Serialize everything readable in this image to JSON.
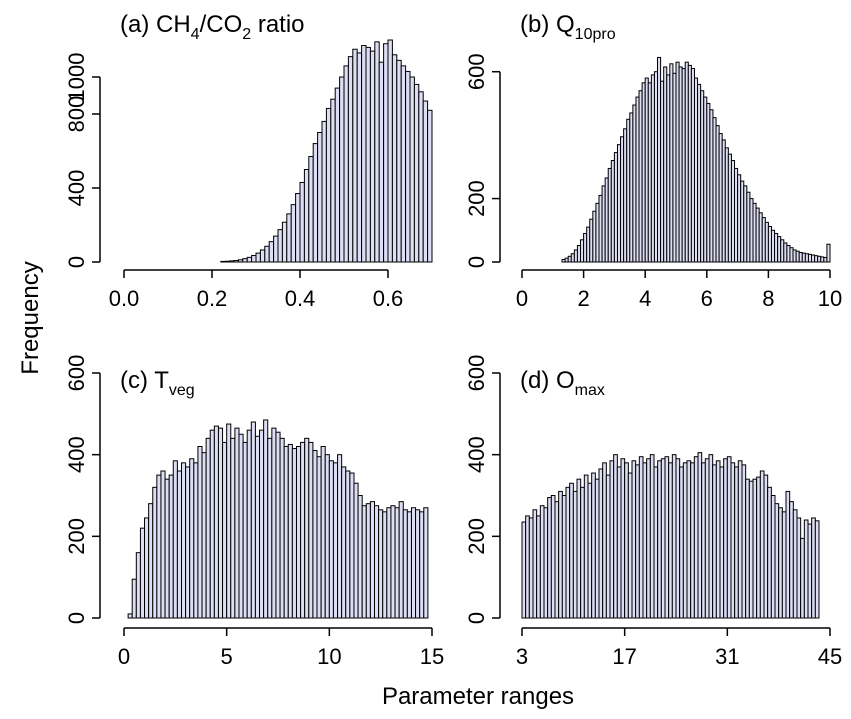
{
  "figure": {
    "ylabel": "Frequency",
    "xlabel": "Parameter ranges",
    "bar_color": "#ddddf3"
  },
  "chart_data": [
    {
      "type": "bar",
      "title": "(a) CH4/CO2 ratio",
      "title_parts": {
        "prefix": "(a) CH",
        "sub1": "4",
        "mid": "/CO",
        "sub2": "2",
        "suffix": " ratio"
      },
      "xlim": [
        0.0,
        0.7
      ],
      "ylim": [
        0,
        1200
      ],
      "xticks": [
        "0.0",
        "0.2",
        "0.4",
        "0.6"
      ],
      "xtick_values": [
        0.0,
        0.2,
        0.4,
        0.6
      ],
      "yticks": [
        "0",
        "400",
        "800",
        "1000"
      ],
      "ytick_values": [
        0,
        400,
        800,
        1000
      ],
      "bin_start": 0.22,
      "bin_width": 0.01,
      "values": [
        3,
        4,
        6,
        8,
        12,
        18,
        25,
        35,
        48,
        65,
        85,
        110,
        140,
        175,
        215,
        260,
        310,
        370,
        430,
        500,
        570,
        640,
        700,
        760,
        830,
        880,
        940,
        1000,
        1060,
        1110,
        1150,
        1130,
        1170,
        1160,
        1140,
        1190,
        1080,
        1180,
        1200,
        1120,
        1090,
        1060,
        1030,
        1000,
        960,
        920,
        870,
        820
      ]
    },
    {
      "type": "bar",
      "title": "(b) Q10pro",
      "title_parts": {
        "prefix": "(b) Q",
        "sub1": "10pro"
      },
      "xlim": [
        0,
        10
      ],
      "ylim": [
        0,
        700
      ],
      "xticks": [
        "0",
        "2",
        "4",
        "6",
        "8",
        "10"
      ],
      "xtick_values": [
        0,
        2,
        4,
        6,
        8,
        10
      ],
      "yticks": [
        "0",
        "200",
        "600"
      ],
      "ytick_values": [
        0,
        200,
        600
      ],
      "bin_start": 1.3,
      "bin_width": 0.1,
      "values": [
        8,
        12,
        18,
        26,
        38,
        52,
        70,
        90,
        110,
        135,
        160,
        185,
        210,
        240,
        265,
        295,
        320,
        345,
        370,
        395,
        420,
        450,
        470,
        495,
        520,
        540,
        565,
        580,
        565,
        590,
        600,
        645,
        570,
        615,
        590,
        625,
        595,
        630,
        615,
        610,
        630,
        620,
        610,
        580,
        560,
        540,
        520,
        500,
        480,
        455,
        430,
        405,
        385,
        360,
        340,
        320,
        295,
        275,
        255,
        240,
        220,
        200,
        185,
        170,
        155,
        140,
        125,
        112,
        100,
        90,
        80,
        70,
        60,
        52,
        45,
        38,
        34,
        30,
        28,
        26,
        24,
        22,
        20,
        18,
        16,
        14,
        56,
        40,
        60,
        55,
        50
      ]
    },
    {
      "type": "bar",
      "title": "(c) Tveg",
      "title_parts": {
        "prefix": "(c) T",
        "sub1": "veg"
      },
      "xlim": [
        0,
        15
      ],
      "ylim": [
        0,
        600
      ],
      "xticks": [
        "0",
        "5",
        "10",
        "15"
      ],
      "xtick_values": [
        0,
        5,
        10,
        15
      ],
      "yticks": [
        "0",
        "200",
        "400",
        "600"
      ],
      "ytick_values": [
        0,
        200,
        400,
        600
      ],
      "bin_start": 0.2,
      "bin_width": 0.2,
      "values": [
        10,
        95,
        160,
        220,
        245,
        280,
        320,
        350,
        360,
        340,
        350,
        385,
        360,
        380,
        370,
        390,
        380,
        420,
        405,
        440,
        460,
        470,
        465,
        430,
        475,
        440,
        465,
        450,
        430,
        460,
        480,
        445,
        460,
        485,
        440,
        465,
        455,
        440,
        420,
        425,
        415,
        420,
        430,
        440,
        430,
        410,
        395,
        420,
        400,
        385,
        380,
        400,
        370,
        360,
        355,
        330,
        300,
        275,
        280,
        285,
        275,
        265,
        260,
        270,
        275,
        270,
        285,
        265,
        260,
        270,
        265,
        260,
        270
      ]
    },
    {
      "type": "bar",
      "title": "(d) Omax",
      "title_parts": {
        "prefix": "(d) O",
        "sub1": "max"
      },
      "xlim": [
        3,
        45
      ],
      "ylim": [
        0,
        600
      ],
      "xticks": [
        "3",
        "17",
        "31",
        "45"
      ],
      "xtick_values": [
        3,
        17,
        31,
        45
      ],
      "yticks": [
        "0",
        "200",
        "400",
        "600"
      ],
      "ytick_values": [
        0,
        200,
        400,
        600
      ],
      "bin_start": 3,
      "bin_width": 0.5,
      "values": [
        235,
        250,
        245,
        265,
        250,
        275,
        270,
        295,
        300,
        285,
        310,
        300,
        320,
        330,
        310,
        340,
        320,
        350,
        330,
        355,
        340,
        365,
        380,
        350,
        385,
        400,
        370,
        390,
        380,
        355,
        385,
        375,
        395,
        380,
        390,
        400,
        370,
        385,
        390,
        395,
        380,
        400,
        390,
        370,
        380,
        385,
        380,
        395,
        405,
        380,
        390,
        400,
        375,
        385,
        370,
        390,
        395,
        380,
        370,
        385,
        375,
        340,
        335,
        340,
        345,
        360,
        350,
        320,
        300,
        280,
        270,
        260,
        310,
        285,
        265,
        245,
        195,
        240,
        230,
        245,
        238
      ]
    }
  ]
}
